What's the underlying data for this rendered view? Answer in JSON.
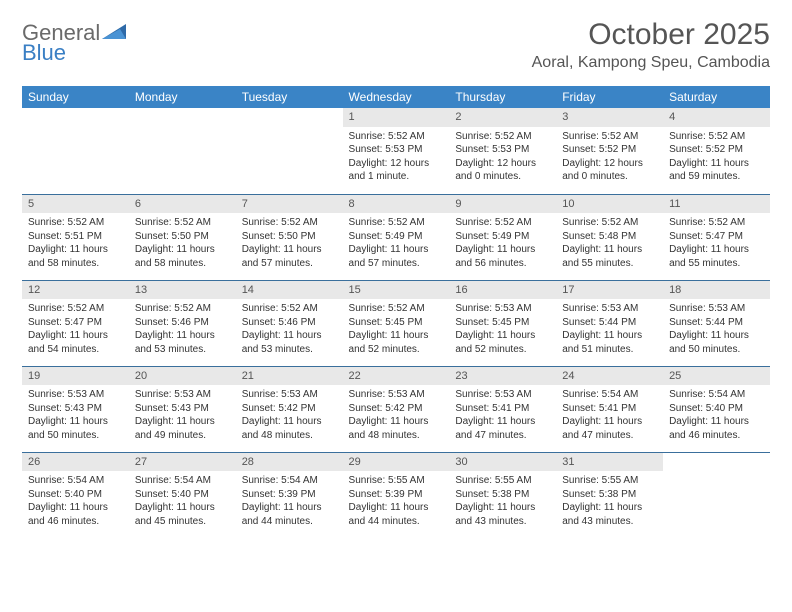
{
  "logo": {
    "word1": "General",
    "word2": "Blue"
  },
  "title": "October 2025",
  "location": "Aoral, Kampong Speu, Cambodia",
  "colors": {
    "header_bg": "#3a84c6",
    "header_text": "#ffffff",
    "daynum_bg": "#e8e8e8",
    "rule": "#3a6f9c",
    "logo_gray": "#6a6a6a",
    "logo_blue": "#3a7fc4",
    "text": "#333333",
    "title_text": "#555555"
  },
  "day_labels": [
    "Sunday",
    "Monday",
    "Tuesday",
    "Wednesday",
    "Thursday",
    "Friday",
    "Saturday"
  ],
  "cells": [
    {
      "n": "",
      "sr": "",
      "ss": "",
      "dl": ""
    },
    {
      "n": "",
      "sr": "",
      "ss": "",
      "dl": ""
    },
    {
      "n": "",
      "sr": "",
      "ss": "",
      "dl": ""
    },
    {
      "n": "1",
      "sr": "Sunrise: 5:52 AM",
      "ss": "Sunset: 5:53 PM",
      "dl": "Daylight: 12 hours and 1 minute."
    },
    {
      "n": "2",
      "sr": "Sunrise: 5:52 AM",
      "ss": "Sunset: 5:53 PM",
      "dl": "Daylight: 12 hours and 0 minutes."
    },
    {
      "n": "3",
      "sr": "Sunrise: 5:52 AM",
      "ss": "Sunset: 5:52 PM",
      "dl": "Daylight: 12 hours and 0 minutes."
    },
    {
      "n": "4",
      "sr": "Sunrise: 5:52 AM",
      "ss": "Sunset: 5:52 PM",
      "dl": "Daylight: 11 hours and 59 minutes."
    },
    {
      "n": "5",
      "sr": "Sunrise: 5:52 AM",
      "ss": "Sunset: 5:51 PM",
      "dl": "Daylight: 11 hours and 58 minutes."
    },
    {
      "n": "6",
      "sr": "Sunrise: 5:52 AM",
      "ss": "Sunset: 5:50 PM",
      "dl": "Daylight: 11 hours and 58 minutes."
    },
    {
      "n": "7",
      "sr": "Sunrise: 5:52 AM",
      "ss": "Sunset: 5:50 PM",
      "dl": "Daylight: 11 hours and 57 minutes."
    },
    {
      "n": "8",
      "sr": "Sunrise: 5:52 AM",
      "ss": "Sunset: 5:49 PM",
      "dl": "Daylight: 11 hours and 57 minutes."
    },
    {
      "n": "9",
      "sr": "Sunrise: 5:52 AM",
      "ss": "Sunset: 5:49 PM",
      "dl": "Daylight: 11 hours and 56 minutes."
    },
    {
      "n": "10",
      "sr": "Sunrise: 5:52 AM",
      "ss": "Sunset: 5:48 PM",
      "dl": "Daylight: 11 hours and 55 minutes."
    },
    {
      "n": "11",
      "sr": "Sunrise: 5:52 AM",
      "ss": "Sunset: 5:47 PM",
      "dl": "Daylight: 11 hours and 55 minutes."
    },
    {
      "n": "12",
      "sr": "Sunrise: 5:52 AM",
      "ss": "Sunset: 5:47 PM",
      "dl": "Daylight: 11 hours and 54 minutes."
    },
    {
      "n": "13",
      "sr": "Sunrise: 5:52 AM",
      "ss": "Sunset: 5:46 PM",
      "dl": "Daylight: 11 hours and 53 minutes."
    },
    {
      "n": "14",
      "sr": "Sunrise: 5:52 AM",
      "ss": "Sunset: 5:46 PM",
      "dl": "Daylight: 11 hours and 53 minutes."
    },
    {
      "n": "15",
      "sr": "Sunrise: 5:52 AM",
      "ss": "Sunset: 5:45 PM",
      "dl": "Daylight: 11 hours and 52 minutes."
    },
    {
      "n": "16",
      "sr": "Sunrise: 5:53 AM",
      "ss": "Sunset: 5:45 PM",
      "dl": "Daylight: 11 hours and 52 minutes."
    },
    {
      "n": "17",
      "sr": "Sunrise: 5:53 AM",
      "ss": "Sunset: 5:44 PM",
      "dl": "Daylight: 11 hours and 51 minutes."
    },
    {
      "n": "18",
      "sr": "Sunrise: 5:53 AM",
      "ss": "Sunset: 5:44 PM",
      "dl": "Daylight: 11 hours and 50 minutes."
    },
    {
      "n": "19",
      "sr": "Sunrise: 5:53 AM",
      "ss": "Sunset: 5:43 PM",
      "dl": "Daylight: 11 hours and 50 minutes."
    },
    {
      "n": "20",
      "sr": "Sunrise: 5:53 AM",
      "ss": "Sunset: 5:43 PM",
      "dl": "Daylight: 11 hours and 49 minutes."
    },
    {
      "n": "21",
      "sr": "Sunrise: 5:53 AM",
      "ss": "Sunset: 5:42 PM",
      "dl": "Daylight: 11 hours and 48 minutes."
    },
    {
      "n": "22",
      "sr": "Sunrise: 5:53 AM",
      "ss": "Sunset: 5:42 PM",
      "dl": "Daylight: 11 hours and 48 minutes."
    },
    {
      "n": "23",
      "sr": "Sunrise: 5:53 AM",
      "ss": "Sunset: 5:41 PM",
      "dl": "Daylight: 11 hours and 47 minutes."
    },
    {
      "n": "24",
      "sr": "Sunrise: 5:54 AM",
      "ss": "Sunset: 5:41 PM",
      "dl": "Daylight: 11 hours and 47 minutes."
    },
    {
      "n": "25",
      "sr": "Sunrise: 5:54 AM",
      "ss": "Sunset: 5:40 PM",
      "dl": "Daylight: 11 hours and 46 minutes."
    },
    {
      "n": "26",
      "sr": "Sunrise: 5:54 AM",
      "ss": "Sunset: 5:40 PM",
      "dl": "Daylight: 11 hours and 46 minutes."
    },
    {
      "n": "27",
      "sr": "Sunrise: 5:54 AM",
      "ss": "Sunset: 5:40 PM",
      "dl": "Daylight: 11 hours and 45 minutes."
    },
    {
      "n": "28",
      "sr": "Sunrise: 5:54 AM",
      "ss": "Sunset: 5:39 PM",
      "dl": "Daylight: 11 hours and 44 minutes."
    },
    {
      "n": "29",
      "sr": "Sunrise: 5:55 AM",
      "ss": "Sunset: 5:39 PM",
      "dl": "Daylight: 11 hours and 44 minutes."
    },
    {
      "n": "30",
      "sr": "Sunrise: 5:55 AM",
      "ss": "Sunset: 5:38 PM",
      "dl": "Daylight: 11 hours and 43 minutes."
    },
    {
      "n": "31",
      "sr": "Sunrise: 5:55 AM",
      "ss": "Sunset: 5:38 PM",
      "dl": "Daylight: 11 hours and 43 minutes."
    },
    {
      "n": "",
      "sr": "",
      "ss": "",
      "dl": ""
    }
  ]
}
